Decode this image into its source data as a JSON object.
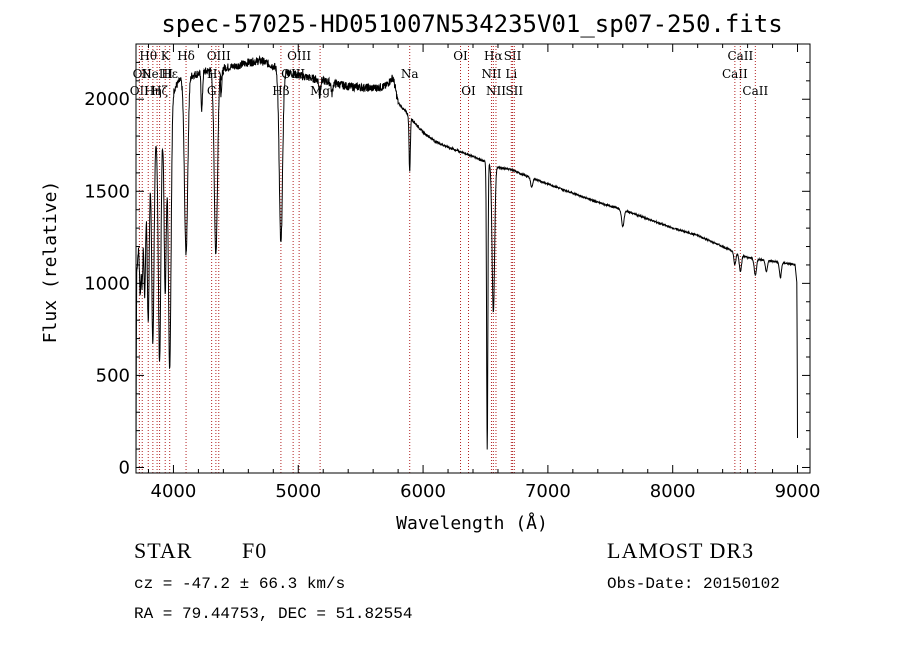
{
  "chart_data": {
    "type": "line",
    "title": "spec-57025-HD051007N534235V01_sp07-250.fits",
    "xlabel": "Wavelength (Å)",
    "ylabel": "Flux (relative)",
    "xlim": [
      3700,
      9100
    ],
    "ylim": [
      -30,
      2300
    ],
    "xticks": [
      {
        "value": 4000,
        "label": "4000"
      },
      {
        "value": 5000,
        "label": "5000"
      },
      {
        "value": 6000,
        "label": "6000"
      },
      {
        "value": 7000,
        "label": "7000"
      },
      {
        "value": 8000,
        "label": "8000"
      },
      {
        "value": 9000,
        "label": "9000"
      }
    ],
    "yticks": [
      {
        "value": 0,
        "label": "0"
      },
      {
        "value": 500,
        "label": "500"
      },
      {
        "value": 1000,
        "label": "1000"
      },
      {
        "value": 1500,
        "label": "1500"
      },
      {
        "value": 2000,
        "label": "2000"
      }
    ],
    "continuum": [
      [
        3700,
        0
      ],
      [
        3705,
        1050
      ],
      [
        3720,
        1200
      ],
      [
        3760,
        1500
      ],
      [
        3800,
        1650
      ],
      [
        3850,
        1750
      ],
      [
        3900,
        1850
      ],
      [
        3950,
        1950
      ],
      [
        4000,
        2050
      ],
      [
        4050,
        2100
      ],
      [
        4150,
        2130
      ],
      [
        4250,
        2150
      ],
      [
        4400,
        2170
      ],
      [
        4500,
        2180
      ],
      [
        4600,
        2200
      ],
      [
        4700,
        2210
      ],
      [
        4800,
        2180
      ],
      [
        4900,
        2150
      ],
      [
        5000,
        2130
      ],
      [
        5200,
        2100
      ],
      [
        5400,
        2070
      ],
      [
        5600,
        2060
      ],
      [
        5700,
        2070
      ],
      [
        5760,
        2120
      ],
      [
        5800,
        1980
      ],
      [
        5900,
        1900
      ],
      [
        6000,
        1820
      ],
      [
        6100,
        1770
      ],
      [
        6200,
        1740
      ],
      [
        6300,
        1715
      ],
      [
        6400,
        1690
      ],
      [
        6500,
        1660
      ],
      [
        6600,
        1630
      ],
      [
        6700,
        1620
      ],
      [
        6800,
        1590
      ],
      [
        7000,
        1540
      ],
      [
        7200,
        1490
      ],
      [
        7400,
        1440
      ],
      [
        7600,
        1400
      ],
      [
        7800,
        1350
      ],
      [
        8000,
        1300
      ],
      [
        8200,
        1260
      ],
      [
        8400,
        1200
      ],
      [
        8500,
        1170
      ],
      [
        8600,
        1140
      ],
      [
        8700,
        1130
      ],
      [
        8800,
        1120
      ],
      [
        8900,
        1110
      ],
      [
        8980,
        1100
      ],
      [
        8995,
        1000
      ],
      [
        9000,
        160
      ]
    ],
    "absorption_features": [
      {
        "center": 3734,
        "depth": 350,
        "width": 6
      },
      {
        "center": 3750,
        "depth": 420,
        "width": 6
      },
      {
        "center": 3770,
        "depth": 600,
        "width": 7
      },
      {
        "center": 3798,
        "depth": 850,
        "width": 8
      },
      {
        "center": 3835,
        "depth": 1050,
        "width": 9
      },
      {
        "center": 3889,
        "depth": 1250,
        "width": 10
      },
      {
        "center": 3934,
        "depth": 950,
        "width": 9
      },
      {
        "center": 3970,
        "depth": 1450,
        "width": 11
      },
      {
        "center": 4101,
        "depth": 950,
        "width": 13
      },
      {
        "center": 4227,
        "depth": 200,
        "width": 6
      },
      {
        "center": 4340,
        "depth": 1000,
        "width": 13
      },
      {
        "center": 4383,
        "depth": 150,
        "width": 5
      },
      {
        "center": 4861,
        "depth": 950,
        "width": 13
      },
      {
        "center": 5172,
        "depth": 90,
        "width": 6
      },
      {
        "center": 5270,
        "depth": 60,
        "width": 6
      },
      {
        "center": 5893,
        "depth": 300,
        "width": 5
      },
      {
        "center": 6514,
        "depth": 1560,
        "width": 5
      },
      {
        "center": 6563,
        "depth": 800,
        "width": 10
      },
      {
        "center": 6870,
        "depth": 50,
        "width": 8
      },
      {
        "center": 7600,
        "depth": 90,
        "width": 10
      },
      {
        "center": 8498,
        "depth": 70,
        "width": 8
      },
      {
        "center": 8542,
        "depth": 90,
        "width": 9
      },
      {
        "center": 8662,
        "depth": 90,
        "width": 9
      },
      {
        "center": 8750,
        "depth": 60,
        "width": 8
      },
      {
        "center": 8863,
        "depth": 80,
        "width": 8
      }
    ],
    "line_markers": [
      {
        "wavelength": 3727,
        "label": "OII",
        "row": 2
      },
      {
        "wavelength": 3750,
        "label": "OII",
        "row": 1
      },
      {
        "wavelength": 3798,
        "label": "Hθ",
        "row": 0
      },
      {
        "wavelength": 3835,
        "label": "Hη",
        "row": 2
      },
      {
        "wavelength": 3869,
        "label": "NeIII",
        "row": 1
      },
      {
        "wavelength": 3889,
        "label": "Hζ",
        "row": 2
      },
      {
        "wavelength": 3934,
        "label": "K",
        "row": 0
      },
      {
        "wavelength": 3970,
        "label": "Hε",
        "row": 1
      },
      {
        "wavelength": 4101,
        "label": "Hδ",
        "row": 0
      },
      {
        "wavelength": 4306,
        "label": "G",
        "row": 2
      },
      {
        "wavelength": 4340,
        "label": "Hγ",
        "row": 1
      },
      {
        "wavelength": 4363,
        "label": "OIII",
        "row": 0
      },
      {
        "wavelength": 4861,
        "label": "Hβ",
        "row": 2
      },
      {
        "wavelength": 4959,
        "label": "OIII",
        "row": 1
      },
      {
        "wavelength": 5007,
        "label": "OIII",
        "row": 0
      },
      {
        "wavelength": 5175,
        "label": "Mg",
        "row": 2
      },
      {
        "wavelength": 5893,
        "label": "Na",
        "row": 1
      },
      {
        "wavelength": 6300,
        "label": "OI",
        "row": 0
      },
      {
        "wavelength": 6364,
        "label": "OI",
        "row": 2
      },
      {
        "wavelength": 6548,
        "label": "NII",
        "row": 1
      },
      {
        "wavelength": 6563,
        "label": "Hα",
        "row": 0
      },
      {
        "wavelength": 6584,
        "label": "NII",
        "row": 2
      },
      {
        "wavelength": 6707,
        "label": "Li",
        "row": 1
      },
      {
        "wavelength": 6717,
        "label": "SII",
        "row": 0
      },
      {
        "wavelength": 6731,
        "label": "SII",
        "row": 2
      },
      {
        "wavelength": 8498,
        "label": "CaII",
        "row": 1
      },
      {
        "wavelength": 8542,
        "label": "CaII",
        "row": 0
      },
      {
        "wavelength": 8662,
        "label": "CaII",
        "row": 2
      }
    ]
  },
  "info": {
    "object_class": "STAR",
    "subclass": "F0",
    "survey": "LAMOST DR3",
    "redshift": "cz = -47.2 ± 66.3 km/s",
    "obs_date": "Obs-Date: 20150102",
    "coords": "RA =  79.44753, DEC =  51.82554"
  },
  "colors": {
    "spectrum": "#000000",
    "marker_line": "#b22222",
    "axis": "#000000"
  }
}
